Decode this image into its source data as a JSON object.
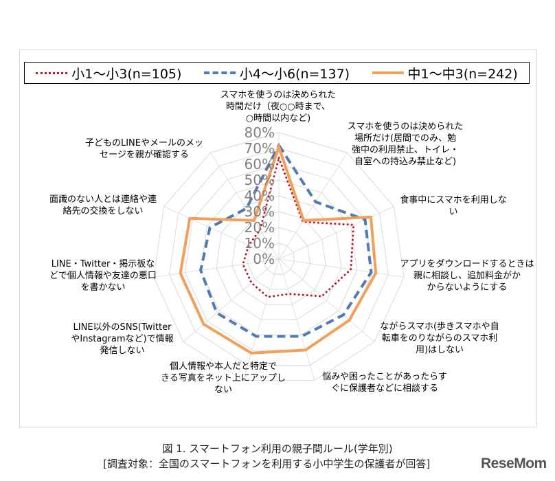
{
  "legend": {
    "items": [
      {
        "label": "小1～小3(n=105)",
        "color": "#c0182a",
        "style": "dotted"
      },
      {
        "label": "小4～小6(n=137)",
        "color": "#4f7ab5",
        "style": "dashed"
      },
      {
        "label": "中1～中3(n=242)",
        "color": "#f0a05a",
        "style": "solid"
      }
    ]
  },
  "axis_ticks": [
    "80%",
    "70%",
    "60%",
    "50%",
    "40%",
    "30%",
    "20%",
    "10%",
    "0%"
  ],
  "categories": [
    "スマホを使うのは決められた\n時間だけ（夜○○時まで、\n○時間以内など)",
    "スマホを使うのは決められた\n場所だけ(居間でのみ、勉\n強中の利用禁止、トイレ・\n自室への持込み禁止など)",
    "食事中にスマホを利用しな\nい",
    "アプリをダウンロードするときは\n親に相談し、追加料金がか\nからないようにする",
    "ながらスマホ(歩きスマホや自\n転車をのりながらのスマホ利\n用)はしない",
    "悩みや困ったことがあったらす\nぐに保護者などに相談する",
    "個人情報や本人だと特定で\nきる写真をネット上にアップし\nない",
    "LINE以外のSNS(Twitter\nやInstagramなど)で情報\n発信しない",
    "LINE・Twitter・掲示板な\nどで個人情報や友達の悪口\nを書かない",
    "面識のない人とは連絡や連\n絡先の交換をしない",
    "子どものLINEやメールのメッ\nセージを親が確認する"
  ],
  "caption": {
    "line1": "図 1. スマートフォン利用の親子間ルール(学年別)",
    "line2": "[調査対象：全国のスマートフォンを利用する小中学生の保護者が回答]"
  },
  "logo": "ReseMom",
  "chart_data": {
    "type": "radar",
    "title": "図 1. スマートフォン利用の親子間ルール(学年別)",
    "subtitle": "[調査対象：全国のスマートフォンを利用する小中学生の保護者が回答]",
    "categories": [
      "スマホを使うのは決められた時間だけ（夜○○時まで、○時間以内など)",
      "スマホを使うのは決められた場所だけ(居間でのみ、勉強中の利用禁止、トイレ・自室への持込み禁止など)",
      "食事中にスマホを利用しない",
      "アプリをダウンロードするときは親に相談し、追加料金がかからないようにする",
      "ながらスマホ(歩きスマホや自転車をのりながらのスマホ利用)はしない",
      "悩みや困ったことがあったらすぐに保護者などに相談する",
      "個人情報や本人だと特定できる写真をネット上にアップしない",
      "LINE以外のSNS(TwitterやInstagramなど)で情報発信しない",
      "LINE・Twitter・掲示板などで個人情報や友達の悪口を書かない",
      "面識のない人とは連絡や連絡先の交換をしない",
      "子どものLINEやメールのメッセージを親が確認する"
    ],
    "series": [
      {
        "name": "小1～小3(n=105)",
        "values": [
          64,
          28,
          52,
          46,
          36,
          23,
          25,
          23,
          23,
          21,
          22
        ]
      },
      {
        "name": "小4～小6(n=137)",
        "values": [
          72,
          43,
          60,
          59,
          54,
          51,
          51,
          52,
          50,
          48,
          38
        ]
      },
      {
        "name": "中1～中3(n=242)",
        "values": [
          71,
          29,
          64,
          62,
          59,
          60,
          62,
          63,
          63,
          62,
          29
        ]
      }
    ],
    "rlim": [
      0,
      80
    ],
    "ticks": [
      0,
      10,
      20,
      30,
      40,
      50,
      60,
      70,
      80
    ],
    "grid": true,
    "legend_position": "top"
  }
}
